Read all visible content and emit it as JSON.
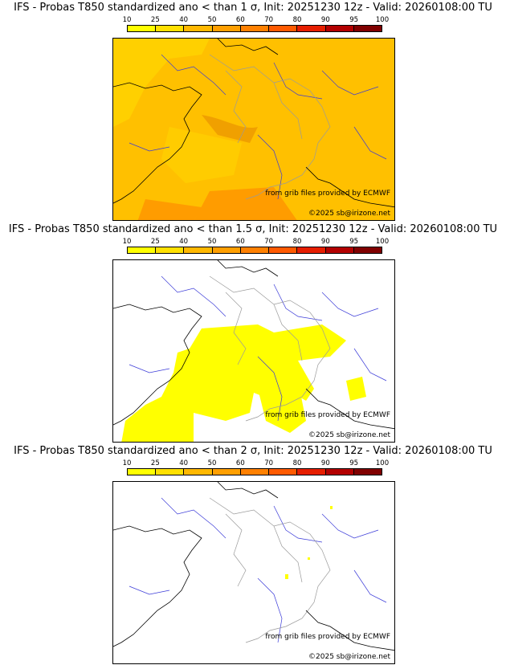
{
  "colorbar": {
    "ticks": [
      "10",
      "25",
      "40",
      "50",
      "60",
      "70",
      "80",
      "90",
      "95",
      "100"
    ],
    "colors": [
      "#ffff00",
      "#ffe000",
      "#ffb800",
      "#ff9f00",
      "#ff8000",
      "#ff5a00",
      "#e61e00",
      "#b30000",
      "#800000"
    ]
  },
  "panels": [
    {
      "title": "IFS - Probas T850  standardized ano < than 1 σ, Init: 20251230 12z - Valid: 20260108:00 TU",
      "credit_source": "from grib files provided by ECMWF",
      "credit_copyright": "©2025 sb@irizone.net",
      "fill": "#ffc000"
    },
    {
      "title": "IFS - Probas T850  standardized ano < than 1.5 σ, Init: 20251230 12z - Valid: 20260108:00 TU",
      "credit_source": "from grib files provided by ECMWF",
      "credit_copyright": "©2025 sb@irizone.net",
      "fill": "#ffff00"
    },
    {
      "title": "IFS - Probas T850  standardized ano < than 2 σ, Init: 20251230 12z - Valid: 20260108:00 TU",
      "credit_source": "from grib files provided by ECMWF",
      "credit_copyright": "©2025 sb@irizone.net",
      "fill": "#ffff00"
    }
  ]
}
